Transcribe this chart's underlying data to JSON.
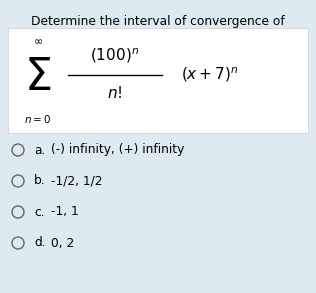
{
  "title": "Determine the interval of convergence of",
  "background_color": "#ddeaf2",
  "formula_box_color": "#ffffff",
  "options": [
    {
      "label": "a.",
      "text": "(-) infinity, (+) infinity"
    },
    {
      "label": "b.",
      "text": "-1/2, 1/2"
    },
    {
      "label": "c.",
      "text": "-1, 1"
    },
    {
      "label": "d.",
      "text": "0, 2"
    }
  ],
  "fig_width": 3.16,
  "fig_height": 2.93,
  "dpi": 100
}
